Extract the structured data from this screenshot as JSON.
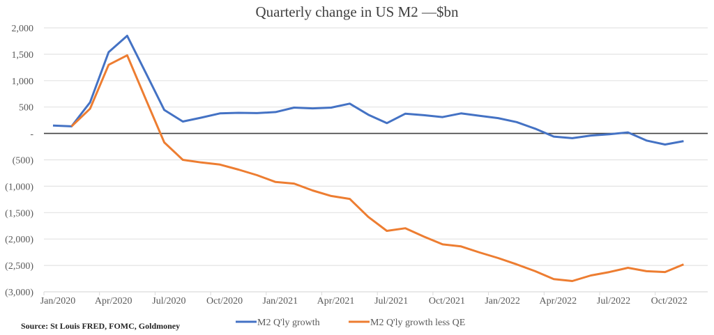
{
  "chart_data": {
    "type": "line",
    "title": "Quarterly change in US M2 —$bn",
    "xlabel": "",
    "ylabel": "",
    "ylim": [
      -3000,
      2000
    ],
    "yticks": [
      2000,
      1500,
      1000,
      500,
      0,
      -500,
      -1000,
      -1500,
      -2000,
      -2500,
      -3000
    ],
    "ytick_labels": [
      "2,000",
      "1,500",
      "1,000",
      "500",
      "-",
      "(500)",
      "(1,000)",
      "(1,500)",
      "(2,000)",
      "(2,500)",
      "(3,000)"
    ],
    "xtick_labels": [
      "Jan/2020",
      "Apr/2020",
      "Jul/2020",
      "Oct/2020",
      "Jan/2021",
      "Apr/2021",
      "Jul/2021",
      "Oct/2021",
      "Jan/2022",
      "Apr/2022",
      "Jul/2022",
      "Oct/2022"
    ],
    "grid": true,
    "legend_position": "bottom",
    "x": [
      "Jan/2020",
      "Feb/2020",
      "Mar/2020",
      "Apr/2020",
      "May/2020",
      "Jun/2020",
      "Jul/2020",
      "Aug/2020",
      "Sep/2020",
      "Oct/2020",
      "Nov/2020",
      "Dec/2020",
      "Jan/2021",
      "Feb/2021",
      "Mar/2021",
      "Apr/2021",
      "May/2021",
      "Jun/2021",
      "Jul/2021",
      "Aug/2021",
      "Sep/2021",
      "Oct/2021",
      "Nov/2021",
      "Dec/2021",
      "Jan/2022",
      "Feb/2022",
      "Mar/2022",
      "Apr/2022",
      "May/2022",
      "Jun/2022",
      "Jul/2022",
      "Aug/2022",
      "Sep/2022",
      "Oct/2022",
      "Nov/2022"
    ],
    "series": [
      {
        "name": "M2 Q'ly growth",
        "color": "#4472C4",
        "values": [
          150,
          135,
          590,
          1540,
          1850,
          1150,
          445,
          225,
          300,
          380,
          390,
          385,
          405,
          490,
          475,
          490,
          565,
          355,
          195,
          375,
          345,
          310,
          380,
          335,
          290,
          215,
          90,
          -60,
          -90,
          -40,
          -15,
          20,
          -135,
          -210,
          -145
        ]
      },
      {
        "name": "M2 Q'ly growth less QE",
        "color": "#ED7D31",
        "values": [
          null,
          135,
          470,
          1300,
          1480,
          650,
          -170,
          -500,
          -550,
          -590,
          -685,
          -790,
          -920,
          -950,
          -1080,
          -1185,
          -1240,
          -1580,
          -1845,
          -1795,
          -1955,
          -2100,
          -2140,
          -2255,
          -2360,
          -2480,
          -2610,
          -2760,
          -2795,
          -2690,
          -2625,
          -2545,
          -2610,
          -2625,
          -2480
        ]
      }
    ],
    "source": "Source: St Louis FRED, FOMC, Goldmoney"
  }
}
